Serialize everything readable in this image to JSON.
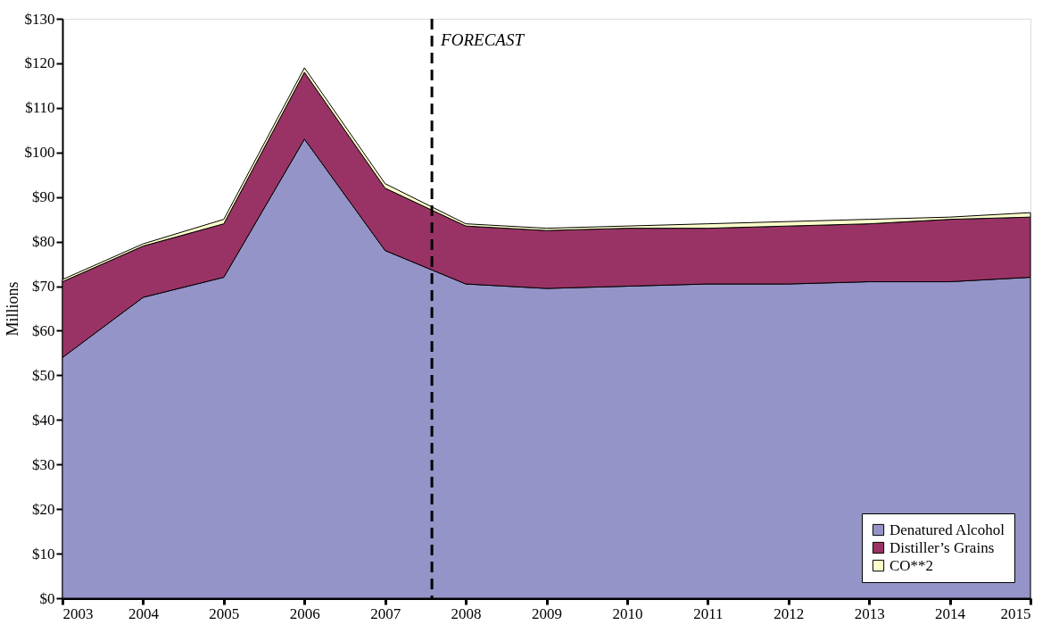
{
  "chart_data": {
    "type": "area",
    "ylabel": "Millions",
    "stacked": true,
    "x": [
      2003,
      2004,
      2005,
      2006,
      2007,
      2008,
      2009,
      2010,
      2011,
      2012,
      2013,
      2014,
      2015
    ],
    "series": [
      {
        "name": "Denatured Alcohol",
        "color": "#9494c8",
        "values": [
          54,
          67.5,
          72,
          103,
          78,
          70.5,
          69.5,
          70,
          70.5,
          70.5,
          71,
          71,
          72
        ]
      },
      {
        "name": "Distiller’s Grains",
        "color": "#993366",
        "values": [
          17,
          11.5,
          12,
          15,
          14,
          13,
          13,
          13,
          12.5,
          13,
          13,
          14,
          13.5
        ]
      },
      {
        "name": "CO**2",
        "color": "#ffffcc",
        "values": [
          0.5,
          0.5,
          1,
          1,
          1,
          0.5,
          0.5,
          0.5,
          1,
          1,
          1,
          0.5,
          1
        ]
      }
    ],
    "xlim": [
      2003,
      2015
    ],
    "xticks": [
      2003,
      2004,
      2005,
      2006,
      2007,
      2008,
      2009,
      2010,
      2011,
      2012,
      2013,
      2014,
      2015
    ],
    "ylim": [
      0,
      130
    ],
    "yticks": [
      {
        "value": 0,
        "label": "$0"
      },
      {
        "value": 10,
        "label": "$10"
      },
      {
        "value": 20,
        "label": "$20"
      },
      {
        "value": 30,
        "label": "$30"
      },
      {
        "value": 40,
        "label": "$40"
      },
      {
        "value": 50,
        "label": "$50"
      },
      {
        "value": 60,
        "label": "$60"
      },
      {
        "value": 70,
        "label": "$70"
      },
      {
        "value": 80,
        "label": "$80"
      },
      {
        "value": 90,
        "label": "$90"
      },
      {
        "value": 100,
        "label": "$100"
      },
      {
        "value": 110,
        "label": "$110"
      },
      {
        "value": 120,
        "label": "$120"
      },
      {
        "value": 130,
        "label": "$130"
      }
    ],
    "ref_lines": [
      {
        "axis": "x",
        "value": 2007.58,
        "label": "FORECAST",
        "line_style": "dashed"
      }
    ],
    "legend": "bottom right",
    "grid": false
  }
}
